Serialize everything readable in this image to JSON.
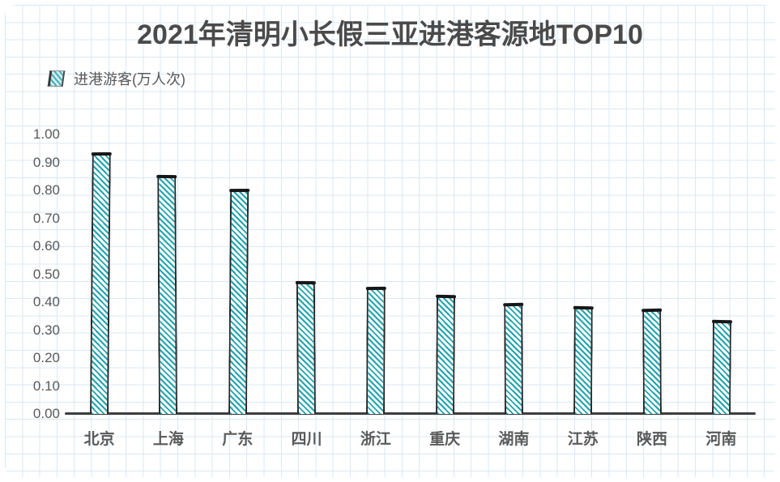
{
  "title": "2021年清明小长假三亚进港客源地TOP10",
  "legend": {
    "label": "进港游客(万人次)"
  },
  "chart_data": {
    "type": "bar",
    "title": "2021年清明小长假三亚进港客源地TOP10",
    "series_name": "进港游客(万人次)",
    "categories": [
      "北京",
      "上海",
      "广东",
      "四川",
      "浙江",
      "重庆",
      "湖南",
      "江苏",
      "陕西",
      "河南"
    ],
    "values": [
      0.93,
      0.85,
      0.8,
      0.47,
      0.45,
      0.42,
      0.39,
      0.38,
      0.37,
      0.33
    ],
    "ylabel": "",
    "xlabel": "",
    "ylim": [
      0.0,
      1.0
    ],
    "ytick_step": 0.1,
    "ytick_labels": [
      "0.00",
      "0.10",
      "0.20",
      "0.30",
      "0.40",
      "0.50",
      "0.60",
      "0.70",
      "0.80",
      "0.90",
      "1.00"
    ],
    "legend_position": "top-left",
    "grid": "graph-paper background, no plot gridlines",
    "bar_style": "hand-drawn sketch, diagonal teal hatching with black outline"
  },
  "colors": {
    "bar_hatch": "#1ea3ac",
    "bar_outline": "#252525",
    "axis_line": "#3d3d3d",
    "title_text": "#4a4a4a",
    "label_text": "#595959",
    "grid_line": "#d8e9f5",
    "background": "#ffffff"
  }
}
